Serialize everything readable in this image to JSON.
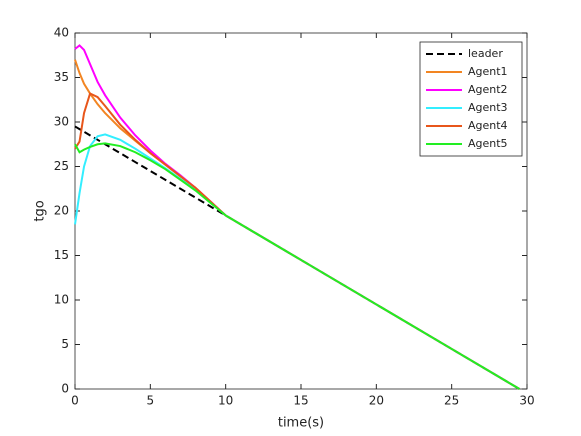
{
  "chart_data": {
    "type": "line",
    "xlabel": "time(s)",
    "ylabel": "tgo",
    "x": [
      0,
      0.3,
      0.6,
      1,
      1.5,
      2,
      3,
      4,
      5,
      6,
      7,
      8,
      10,
      15,
      20,
      25,
      29.5
    ],
    "series": [
      {
        "name": "leader",
        "color": "#000000",
        "dashed": true,
        "values": [
          29.5,
          29.2,
          28.9,
          28.5,
          28,
          27.5,
          26.5,
          25.5,
          24.5,
          23.5,
          22.5,
          21.5,
          19.5,
          14.5,
          9.5,
          4.5,
          0
        ]
      },
      {
        "name": "Agent1",
        "color": "#f28522",
        "values": [
          37,
          35.5,
          34.3,
          33.2,
          32,
          31,
          29.3,
          27.9,
          26.5,
          25.2,
          23.9,
          22.6,
          19.5,
          14.5,
          9.5,
          4.5,
          0
        ]
      },
      {
        "name": "Agent2",
        "color": "#ff00ff",
        "values": [
          38.2,
          38.6,
          38.1,
          36.5,
          34.5,
          33,
          30.5,
          28.5,
          26.8,
          25.3,
          24,
          22.6,
          19.5,
          14.5,
          9.5,
          4.5,
          0
        ]
      },
      {
        "name": "Agent3",
        "color": "#33eeff",
        "values": [
          18.5,
          22,
          25,
          27.3,
          28.4,
          28.6,
          28,
          27,
          25.9,
          24.8,
          23.6,
          22.4,
          19.5,
          14.5,
          9.5,
          4.5,
          0
        ]
      },
      {
        "name": "Agent4",
        "color": "#e8561b",
        "values": [
          27,
          27.8,
          31,
          33.2,
          32.8,
          31.8,
          29.7,
          28,
          26.5,
          25.2,
          23.9,
          22.6,
          19.5,
          14.5,
          9.5,
          4.5,
          0
        ]
      },
      {
        "name": "Agent5",
        "color": "#22ee22",
        "values": [
          27.5,
          26.6,
          26.9,
          27.2,
          27.5,
          27.6,
          27.3,
          26.6,
          25.7,
          24.7,
          23.5,
          22.3,
          19.5,
          14.5,
          9.5,
          4.5,
          0
        ]
      }
    ],
    "xlim": [
      0,
      30
    ],
    "xticks": [
      0,
      5,
      10,
      15,
      20,
      25,
      30
    ],
    "ylim": [
      0,
      40
    ],
    "yticks": [
      0,
      5,
      10,
      15,
      20,
      25,
      30,
      35,
      40
    ],
    "grid": false,
    "legend": "top-right"
  }
}
